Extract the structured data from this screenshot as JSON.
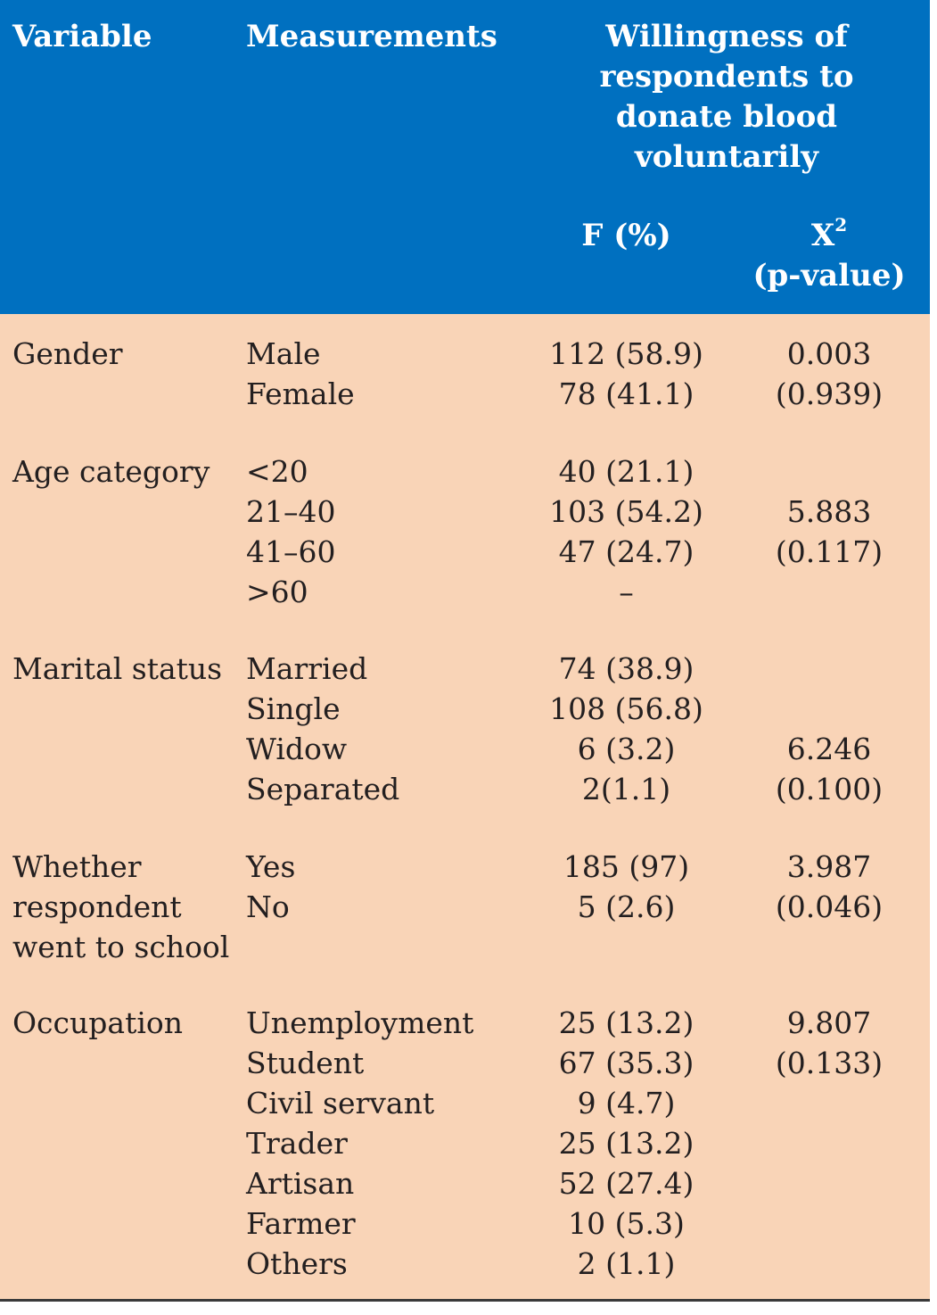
{
  "header": {
    "variable": "Variable",
    "measurements": "Measurements",
    "willingness": [
      "Willingness of",
      "respondents to",
      "donate blood",
      "voluntarily"
    ],
    "f_pct": "F (%)",
    "x2_base": "X",
    "x2_sup": "2",
    "p_value": "(p-value)"
  },
  "groups": [
    {
      "variable": [
        "Gender"
      ],
      "rows": [
        {
          "measure": "Male",
          "f": "112 (58.9)",
          "x": "0.003"
        },
        {
          "measure": "Female",
          "f": "78 (41.1)",
          "x": "(0.939)"
        }
      ]
    },
    {
      "variable": [
        "Age category"
      ],
      "rows": [
        {
          "measure": "<20",
          "f": "40 (21.1)",
          "x": ""
        },
        {
          "measure": "21–40",
          "f": "103 (54.2)",
          "x": "5.883"
        },
        {
          "measure": "41–60",
          "f": "47 (24.7)",
          "x": "(0.117)"
        },
        {
          "measure": ">60",
          "f": "–",
          "x": ""
        }
      ]
    },
    {
      "variable": [
        "Marital status"
      ],
      "rows": [
        {
          "measure": "Married",
          "f": "74 (38.9)",
          "x": ""
        },
        {
          "measure": "Single",
          "f": "108 (56.8)",
          "x": ""
        },
        {
          "measure": "Widow",
          "f": "6 (3.2)",
          "x": "6.246"
        },
        {
          "measure": "Separated",
          "f": "2(1.1)",
          "x": "(0.100)"
        }
      ]
    },
    {
      "variable": [
        "Whether",
        "respondent",
        "went to school"
      ],
      "rows": [
        {
          "measure": "Yes",
          "f": "185 (97)",
          "x": "3.987"
        },
        {
          "measure": "No",
          "f": "5 (2.6)",
          "x": "(0.046)"
        }
      ]
    },
    {
      "variable": [
        "Occupation"
      ],
      "rows": [
        {
          "measure": "Unemployment",
          "f": "25 (13.2)",
          "x": "9.807"
        },
        {
          "measure": "Student",
          "f": "67 (35.3)",
          "x": "(0.133)"
        },
        {
          "measure": "Civil servant",
          "f": "9 (4.7)",
          "x": ""
        },
        {
          "measure": "Trader",
          "f": "25 (13.2)",
          "x": ""
        },
        {
          "measure": "Artisan",
          "f": "52 (27.4)",
          "x": ""
        },
        {
          "measure": "Farmer",
          "f": "10 (5.3)",
          "x": ""
        },
        {
          "measure": "Others",
          "f": "2 (1.1)",
          "x": ""
        }
      ]
    }
  ],
  "colors": {
    "header_bg": "#0070c0",
    "body_bg": "#f9d4b7",
    "header_text": "#ffffff"
  }
}
